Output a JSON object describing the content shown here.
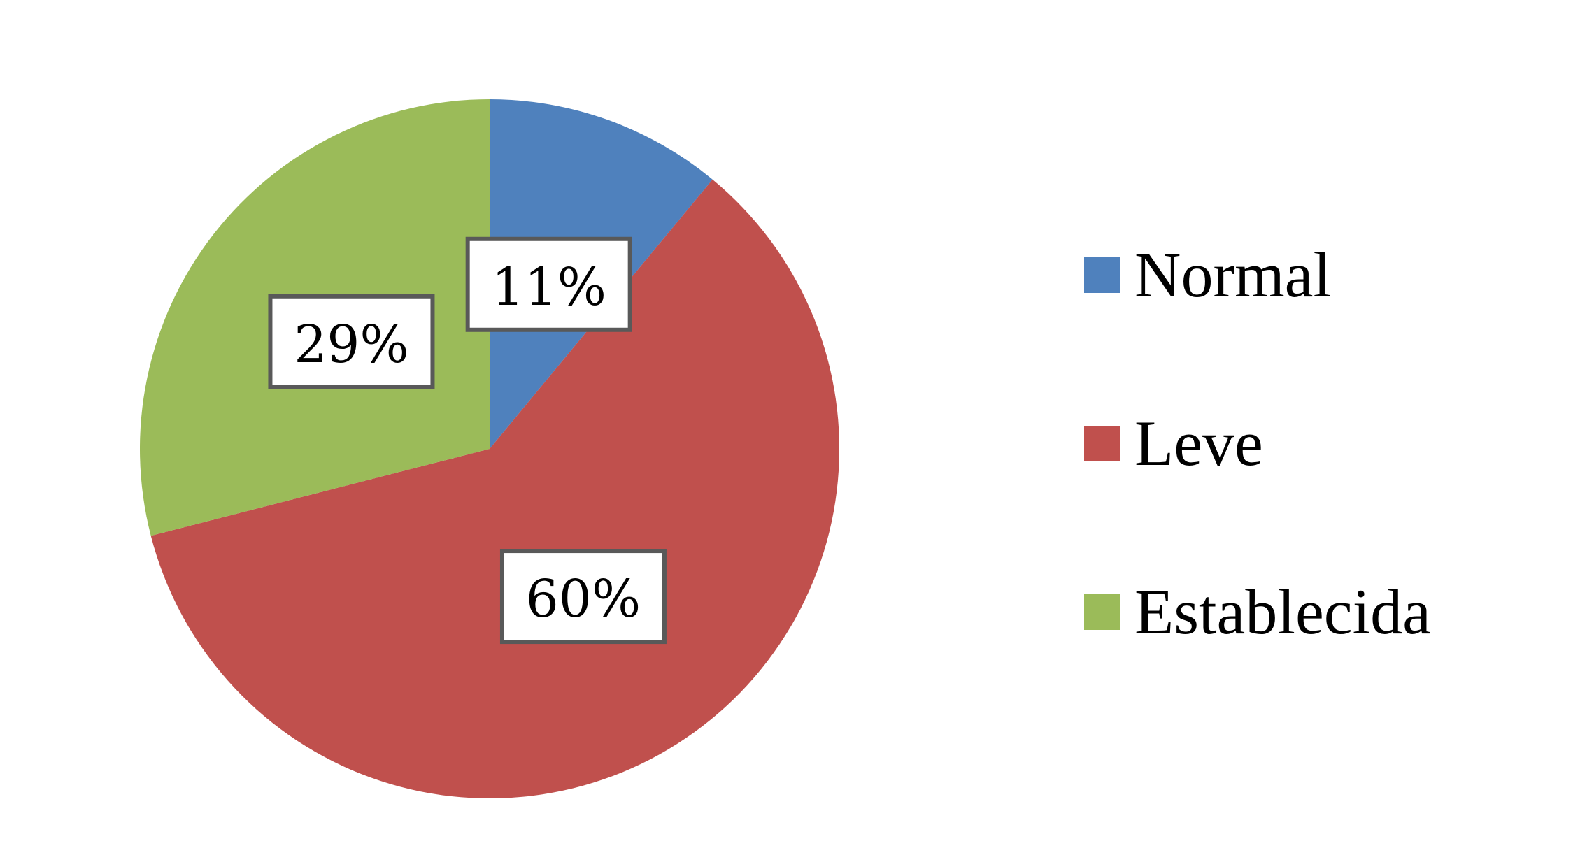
{
  "chart_data": {
    "type": "pie",
    "categories": [
      "Normal",
      "Leve",
      "Establecida"
    ],
    "values": [
      11,
      60,
      29
    ],
    "value_labels": [
      "11%",
      "60%",
      "29%"
    ],
    "colors": [
      "#4f81bd",
      "#c0504d",
      "#9bbb59"
    ],
    "legend": "right"
  }
}
